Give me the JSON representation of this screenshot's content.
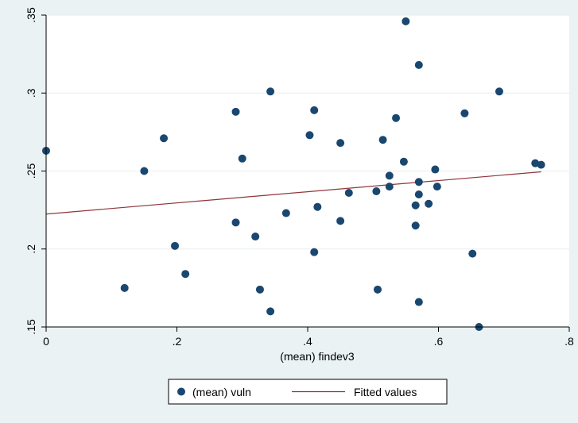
{
  "chart_data": {
    "type": "scatter",
    "xlabel": "(mean) findev3",
    "ylabel": "",
    "xlim": [
      0,
      0.8
    ],
    "ylim": [
      0.15,
      0.35
    ],
    "xticks": [
      {
        "value": 0,
        "label": "0"
      },
      {
        "value": 0.2,
        "label": ".2"
      },
      {
        "value": 0.4,
        "label": ".4"
      },
      {
        "value": 0.6,
        "label": ".6"
      },
      {
        "value": 0.8,
        "label": ".8"
      }
    ],
    "yticks": [
      {
        "value": 0.15,
        "label": ".15"
      },
      {
        "value": 0.2,
        "label": ".2"
      },
      {
        "value": 0.25,
        "label": ".25"
      },
      {
        "value": 0.3,
        "label": ".3"
      },
      {
        "value": 0.35,
        "label": ".35"
      }
    ],
    "grid": true,
    "legend_position": "bottom",
    "series": [
      {
        "name": "(mean) vuln",
        "type": "scatter",
        "color": "#1a476f",
        "points": [
          [
            0.0,
            0.263
          ],
          [
            0.12,
            0.175
          ],
          [
            0.15,
            0.25
          ],
          [
            0.18,
            0.271
          ],
          [
            0.197,
            0.202
          ],
          [
            0.213,
            0.184
          ],
          [
            0.29,
            0.288
          ],
          [
            0.29,
            0.217
          ],
          [
            0.3,
            0.258
          ],
          [
            0.32,
            0.208
          ],
          [
            0.327,
            0.174
          ],
          [
            0.343,
            0.301
          ],
          [
            0.343,
            0.16
          ],
          [
            0.367,
            0.223
          ],
          [
            0.403,
            0.273
          ],
          [
            0.41,
            0.289
          ],
          [
            0.41,
            0.198
          ],
          [
            0.415,
            0.227
          ],
          [
            0.45,
            0.268
          ],
          [
            0.45,
            0.218
          ],
          [
            0.463,
            0.236
          ],
          [
            0.505,
            0.237
          ],
          [
            0.507,
            0.174
          ],
          [
            0.515,
            0.27
          ],
          [
            0.525,
            0.247
          ],
          [
            0.525,
            0.24
          ],
          [
            0.535,
            0.284
          ],
          [
            0.547,
            0.256
          ],
          [
            0.55,
            0.346
          ],
          [
            0.565,
            0.215
          ],
          [
            0.565,
            0.228
          ],
          [
            0.57,
            0.318
          ],
          [
            0.57,
            0.243
          ],
          [
            0.57,
            0.235
          ],
          [
            0.57,
            0.166
          ],
          [
            0.585,
            0.229
          ],
          [
            0.595,
            0.251
          ],
          [
            0.598,
            0.24
          ],
          [
            0.64,
            0.287
          ],
          [
            0.652,
            0.197
          ],
          [
            0.662,
            0.15
          ],
          [
            0.693,
            0.301
          ],
          [
            0.748,
            0.255
          ],
          [
            0.757,
            0.254
          ]
        ]
      },
      {
        "name": "Fitted values",
        "type": "line",
        "color": "#90353b",
        "points": [
          [
            0.0,
            0.2224
          ],
          [
            0.757,
            0.2495
          ]
        ]
      }
    ]
  }
}
